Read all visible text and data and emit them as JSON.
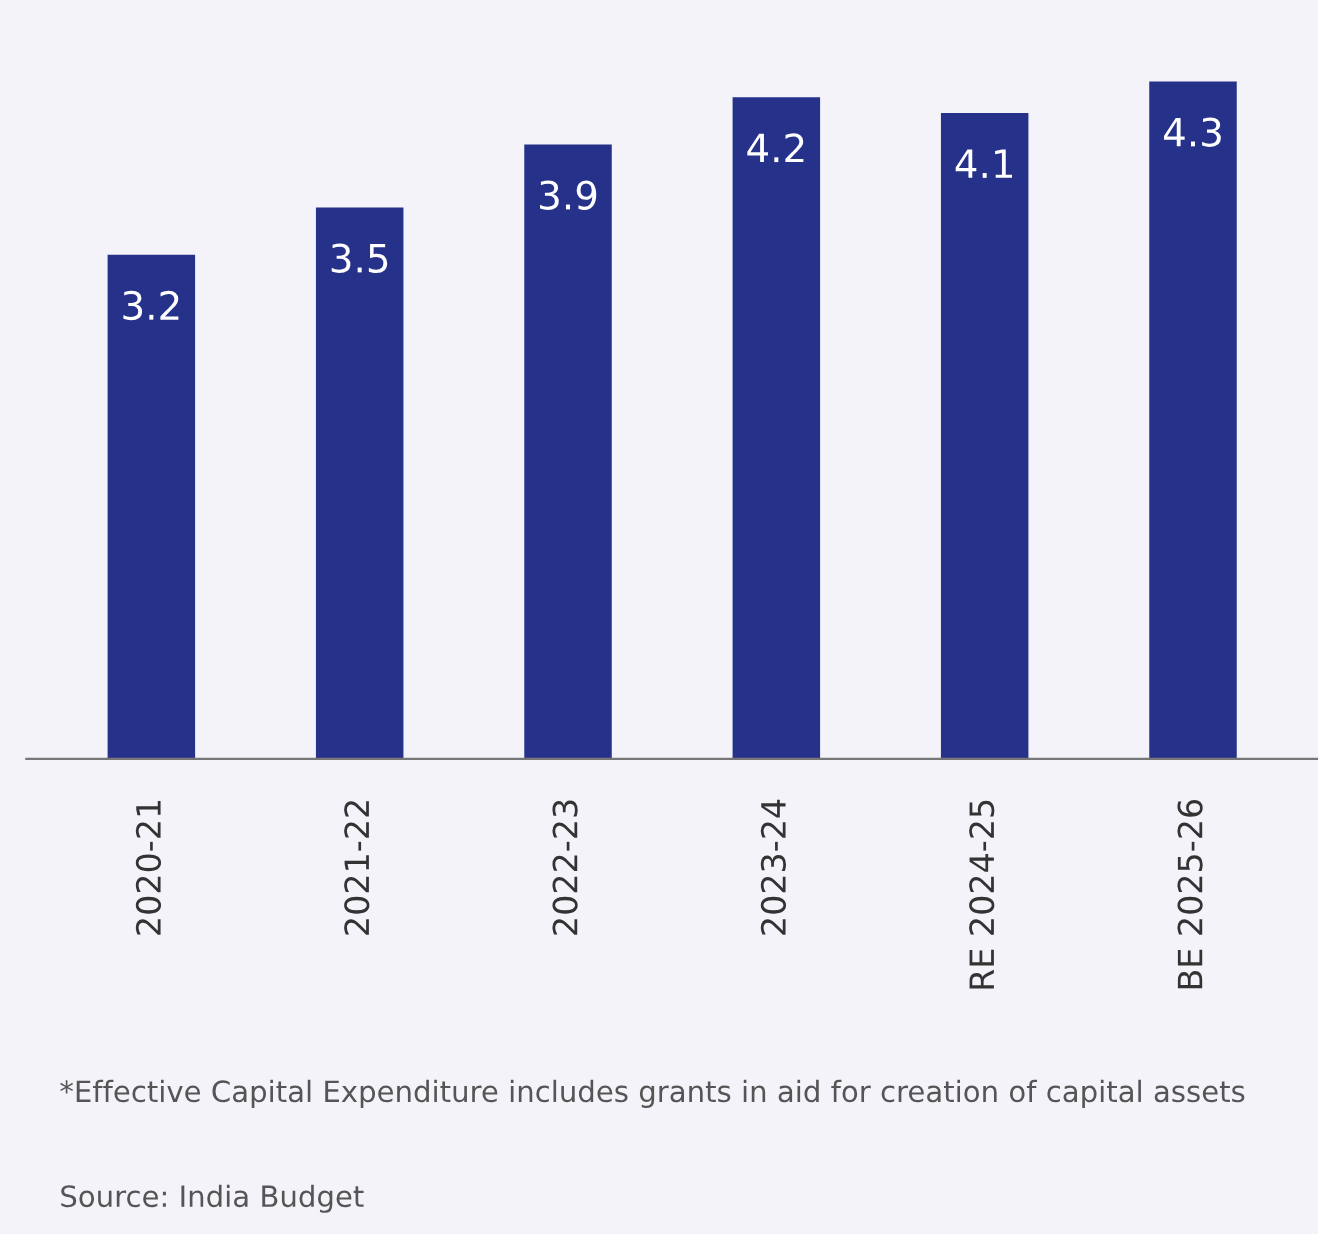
{
  "chart_data": {
    "type": "bar",
    "categories": [
      "2020-21",
      "2021-22",
      "2022-23",
      "2023-24",
      "RE 2024-25",
      "BE 2025-26"
    ],
    "values": [
      3.2,
      3.5,
      3.9,
      4.2,
      4.1,
      4.3
    ],
    "color": "#26318a",
    "data_labels": true,
    "grid": false,
    "annotations": [
      "*Effective Capital Expenditure includes grants in aid for creation of capital assets",
      "Source: India Budget"
    ]
  }
}
